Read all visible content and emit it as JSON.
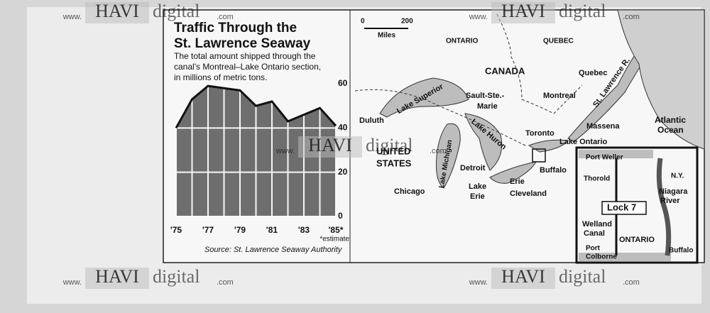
{
  "chart_data": {
    "type": "area",
    "title": "Traffic Through the St. Lawrence Seaway",
    "subtitle": [
      "The total amount shipped through the",
      "canal's Montreal–Lake Ontario section,",
      "in millions of metric tons."
    ],
    "categories": [
      "'75",
      null,
      "'77",
      null,
      "'79",
      null,
      "'81",
      null,
      "'83",
      null,
      "'85*"
    ],
    "values": [
      40,
      53,
      59,
      58,
      57,
      50,
      52,
      43,
      46,
      49,
      41
    ],
    "color": "#6e6e6e",
    "ylim": [
      0,
      60
    ],
    "yticks": [
      0,
      20,
      40,
      60
    ],
    "grid": true,
    "annotation": "*estimate",
    "source": "Source: St. Lawrence Seaway Authority"
  },
  "map": {
    "labels": [
      "0",
      "200",
      "Miles",
      "ONTARIO",
      "QUEBEC",
      "CANADA",
      "Quebec",
      "St. Lawrence R.",
      "Montreal",
      "Massena",
      "Atlantic",
      "Ocean",
      "Duluth",
      "Lake Superior",
      "Sault-Ste.-",
      "Marie",
      "Lake Huron",
      "Toronto",
      "Lake Ontario",
      "UNITED",
      "STATES",
      "Lake Michigan",
      "Detroit",
      "Buffalo",
      "Erie",
      "Lake",
      "Erie",
      "Chicago",
      "Cleveland"
    ],
    "inset": [
      "Port Weller",
      "Thorold",
      "N.Y.",
      "Niagara",
      "River",
      "Lock 7",
      "Welland",
      "Canal",
      "ONTARIO",
      "Port",
      "Colborne",
      "Buffalo"
    ]
  },
  "watermark": {
    "brand": "HAVI",
    "word": "digital",
    "prefix": "www.",
    "suffix": ".com"
  }
}
